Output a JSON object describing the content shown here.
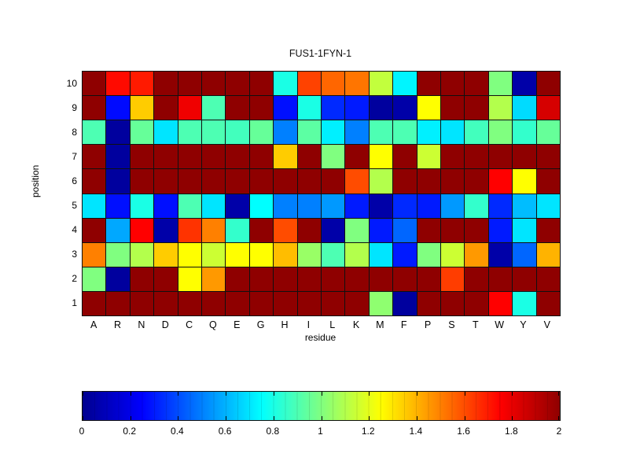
{
  "title": "FUS1-1FYN-1",
  "chart_data": {
    "type": "heatmap",
    "title": "FUS1-1FYN-1",
    "xlabel": "residue",
    "ylabel": "position",
    "colormap": "jet",
    "columns": [
      "A",
      "R",
      "N",
      "D",
      "C",
      "Q",
      "E",
      "G",
      "H",
      "I",
      "L",
      "K",
      "M",
      "F",
      "P",
      "S",
      "T",
      "W",
      "Y",
      "V"
    ],
    "rows": [
      "10",
      "9",
      "8",
      "7",
      "6",
      "5",
      "4",
      "3",
      "2",
      "1"
    ],
    "values": [
      [
        1.97,
        1.73,
        1.7,
        1.97,
        1.97,
        1.97,
        1.97,
        1.97,
        0.8,
        1.62,
        1.55,
        1.52,
        1.13,
        0.73,
        1.97,
        1.97,
        1.97,
        1.0,
        0.08,
        1.97
      ],
      [
        1.97,
        0.27,
        1.35,
        1.97,
        1.78,
        0.9,
        1.97,
        1.97,
        0.28,
        0.8,
        0.33,
        0.3,
        0.06,
        0.08,
        1.25,
        1.97,
        1.97,
        1.1,
        0.68,
        1.83
      ],
      [
        0.9,
        0.06,
        0.95,
        0.7,
        0.9,
        0.9,
        0.88,
        0.95,
        0.5,
        0.93,
        0.72,
        0.5,
        0.9,
        0.9,
        0.72,
        0.7,
        0.88,
        1.0,
        0.85,
        0.95
      ],
      [
        1.97,
        0.06,
        1.97,
        1.97,
        1.97,
        1.97,
        1.97,
        1.97,
        1.35,
        1.97,
        1.0,
        1.97,
        1.25,
        1.97,
        1.15,
        1.97,
        1.97,
        1.97,
        1.97,
        1.97
      ],
      [
        1.97,
        0.06,
        1.97,
        1.97,
        1.97,
        1.97,
        1.97,
        1.97,
        1.97,
        1.97,
        1.97,
        1.6,
        1.1,
        1.97,
        1.97,
        1.97,
        1.97,
        1.75,
        1.25,
        1.97
      ],
      [
        0.7,
        0.28,
        0.8,
        0.28,
        0.9,
        0.7,
        0.08,
        0.75,
        0.5,
        0.5,
        0.55,
        0.3,
        0.08,
        0.33,
        0.3,
        0.55,
        0.85,
        0.33,
        0.62,
        0.7
      ],
      [
        1.97,
        0.58,
        1.75,
        0.08,
        1.65,
        1.5,
        0.85,
        1.97,
        1.6,
        1.97,
        0.08,
        1.0,
        0.3,
        0.45,
        1.97,
        1.97,
        1.97,
        0.3,
        0.7,
        1.97
      ],
      [
        1.5,
        1.0,
        1.1,
        1.35,
        1.25,
        1.15,
        1.25,
        1.25,
        1.38,
        1.05,
        0.9,
        1.1,
        0.7,
        0.3,
        1.0,
        1.15,
        1.45,
        0.08,
        0.45,
        1.4
      ],
      [
        1.0,
        0.06,
        1.97,
        1.97,
        1.25,
        1.45,
        1.97,
        1.97,
        1.97,
        1.97,
        1.97,
        1.97,
        1.97,
        1.97,
        1.97,
        1.63,
        1.97,
        1.97,
        1.97,
        1.97
      ],
      [
        1.97,
        1.97,
        1.97,
        1.97,
        1.97,
        1.97,
        1.97,
        1.97,
        1.97,
        1.97,
        1.97,
        1.97,
        1.03,
        0.06,
        1.97,
        1.97,
        1.97,
        1.75,
        0.8,
        1.97
      ]
    ],
    "scale": {
      "min": 0,
      "max": 2,
      "tick_labels": [
        "0",
        "0.2",
        "0.4",
        "0.6",
        "0.8",
        "1",
        "1.2",
        "1.4",
        "1.6",
        "1.8",
        "2"
      ],
      "tick_values": [
        0,
        0.2,
        0.4,
        0.6,
        0.8,
        1,
        1.2,
        1.4,
        1.6,
        1.8,
        2
      ],
      "legend_position": "bottom"
    },
    "grid_line_color": "#101010"
  }
}
